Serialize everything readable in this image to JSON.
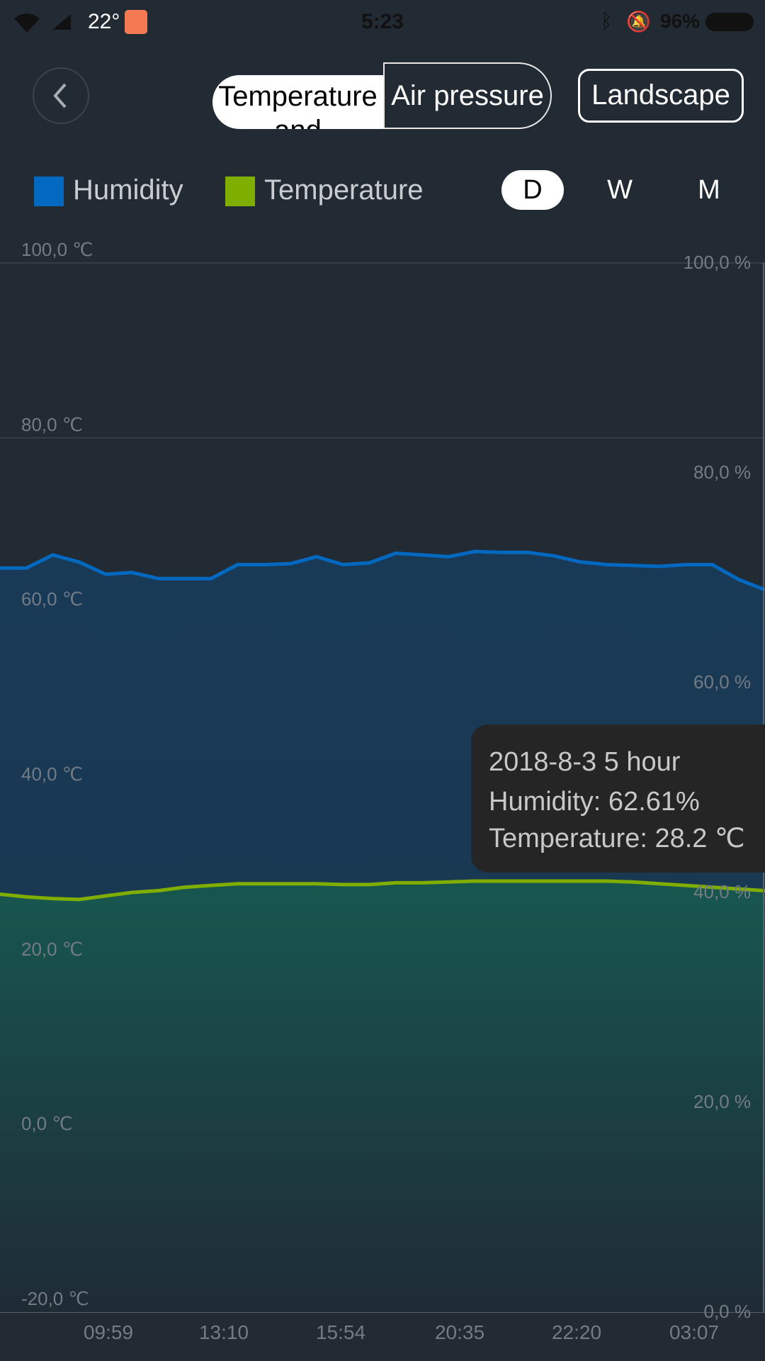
{
  "status_bar": {
    "temperature": "22°",
    "time": "5:23",
    "battery": "96%",
    "icons": [
      "wifi-icon",
      "signal-icon",
      "mi-app-icon",
      "bluetooth-icon",
      "mute-bell-icon",
      "battery-icon"
    ]
  },
  "header": {
    "tabs": [
      {
        "label": "Temperature and",
        "selected": true
      },
      {
        "label": "Air pressure",
        "selected": false
      }
    ],
    "landscape_label": "Landscape"
  },
  "legend": [
    {
      "label": "Humidity",
      "color": "#0368c0"
    },
    {
      "label": "Temperature",
      "color": "#7fae00"
    }
  ],
  "period": {
    "options": [
      "D",
      "W",
      "M"
    ],
    "selected": "D"
  },
  "tooltip": {
    "title": "2018-8-3 5 hour",
    "humidity": "Humidity: 62.61%",
    "temperature": "Temperature: 28.2 ℃"
  },
  "colors": {
    "background": "#222a33",
    "humidity_fill": "#1a3a55",
    "temperature_fill": "#17554f"
  },
  "chart_data": {
    "type": "area",
    "x_tick_labels": [
      "09:59",
      "13:10",
      "15:54",
      "20:35",
      "22:20",
      "03:07"
    ],
    "left_axis": {
      "range": [
        -20,
        100
      ],
      "ticks": [
        "100,0 ℃",
        "80,0 ℃",
        "60,0 ℃",
        "40,0 ℃",
        "20,0 ℃",
        "0,0 ℃",
        "-20,0 ℃"
      ]
    },
    "right_axis": {
      "range": [
        0,
        100
      ],
      "ticks": [
        "100,0 %",
        "80,0 %",
        "60,0 %",
        "40,0 %",
        "20,0 %",
        "0,0 %"
      ]
    },
    "grid": true,
    "series": [
      {
        "name": "Humidity",
        "color": "#0368c0",
        "values": [
          65.1,
          65.1,
          66.6,
          65.8,
          64.4,
          64.6,
          63.9,
          63.9,
          63.9,
          65.5,
          65.5,
          65.6,
          66.4,
          65.5,
          65.7,
          66.8,
          66.6,
          66.4,
          67.0,
          66.9,
          66.9,
          66.5,
          65.8,
          65.5,
          65.4,
          65.3,
          65.5,
          65.5,
          63.8,
          62.61
        ]
      },
      {
        "name": "Temperature",
        "color": "#7fae00",
        "values": [
          27.8,
          27.5,
          27.3,
          27.2,
          27.6,
          28.0,
          28.2,
          28.6,
          28.8,
          29.0,
          29.0,
          29.0,
          29.0,
          28.9,
          28.9,
          29.1,
          29.1,
          29.2,
          29.3,
          29.3,
          29.3,
          29.3,
          29.3,
          29.3,
          29.2,
          29.0,
          28.8,
          28.6,
          28.4,
          28.2
        ]
      }
    ]
  }
}
